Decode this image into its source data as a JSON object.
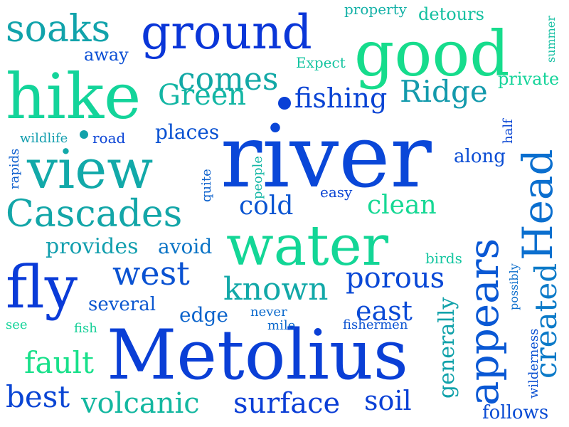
{
  "words": [
    {
      "text": "Metolius",
      "color": "#0a3fd6"
    },
    {
      "text": "river",
      "color": "#0a47d8"
    },
    {
      "text": "water",
      "color": "#13d696"
    },
    {
      "text": "hike",
      "color": "#13d49a"
    },
    {
      "text": "good",
      "color": "#16dc8c"
    },
    {
      "text": "view",
      "color": "#12a9a9"
    },
    {
      "text": "ground",
      "color": "#0a36d8"
    },
    {
      "text": "fly",
      "color": "#0a3bd8"
    },
    {
      "text": "appears",
      "color": "#0a58d4"
    },
    {
      "text": "Head",
      "color": "#0b6fcf"
    },
    {
      "text": "Cascades",
      "color": "#13a6a8"
    },
    {
      "text": "soaks",
      "color": "#11a3ab"
    },
    {
      "text": "comes",
      "color": "#12a8a6"
    },
    {
      "text": "Green",
      "color": "#14b6a4"
    },
    {
      "text": "Ridge",
      "color": "#139aac"
    },
    {
      "text": "fishing",
      "color": "#0a44d4"
    },
    {
      "text": "west",
      "color": "#0a52d2"
    },
    {
      "text": "known",
      "color": "#12a8a8"
    },
    {
      "text": "porous",
      "color": "#0a48d6"
    },
    {
      "text": "east",
      "color": "#0a4ad6"
    },
    {
      "text": "created",
      "color": "#0b7ac8"
    },
    {
      "text": "volcanic",
      "color": "#13b7a0"
    },
    {
      "text": "surface",
      "color": "#0a3ed6"
    },
    {
      "text": "best",
      "color": "#0a45d4"
    },
    {
      "text": "fault",
      "color": "#18e08a"
    },
    {
      "text": "soil",
      "color": "#0a40d6"
    },
    {
      "text": "clean",
      "color": "#16d894"
    },
    {
      "text": "cold",
      "color": "#0a55d2"
    },
    {
      "text": "provides",
      "color": "#139fae"
    },
    {
      "text": "avoid",
      "color": "#0b74c6"
    },
    {
      "text": "places",
      "color": "#0a52d2"
    },
    {
      "text": "along",
      "color": "#0a4cd4"
    },
    {
      "text": "several",
      "color": "#0a57d0"
    },
    {
      "text": "edge",
      "color": "#0b64cc"
    },
    {
      "text": "generally",
      "color": "#12a2aa"
    },
    {
      "text": "follows",
      "color": "#0a4cd4"
    },
    {
      "text": "detours",
      "color": "#14c0a0"
    },
    {
      "text": "property",
      "color": "#12b0a6"
    },
    {
      "text": "summer",
      "color": "#14bfa2"
    },
    {
      "text": "private",
      "color": "#16d49a"
    },
    {
      "text": "Expect",
      "color": "#14c4a0"
    },
    {
      "text": "away",
      "color": "#0a4ed4"
    },
    {
      "text": "wildlife",
      "color": "#139eae"
    },
    {
      "text": "road",
      "color": "#0a44d6"
    },
    {
      "text": "rapids",
      "color": "#0b5ece"
    },
    {
      "text": "quite",
      "color": "#0b60cc"
    },
    {
      "text": "people",
      "color": "#13b6a4"
    },
    {
      "text": "easy",
      "color": "#0a44d4"
    },
    {
      "text": "half",
      "color": "#0a46d4"
    },
    {
      "text": "birds",
      "color": "#14c6a0"
    },
    {
      "text": "possibly",
      "color": "#0b6ecc"
    },
    {
      "text": "wilderness",
      "color": "#0a50d2"
    },
    {
      "text": "never",
      "color": "#0b6acc"
    },
    {
      "text": "mile",
      "color": "#0b68cc"
    },
    {
      "text": "fishermen",
      "color": "#0a52d2"
    },
    {
      "text": "see",
      "color": "#16d49a"
    },
    {
      "text": "fish",
      "color": "#16d098"
    }
  ],
  "dots": [
    {
      "color": "#0a40d6"
    },
    {
      "color": "#12a2aa"
    }
  ]
}
